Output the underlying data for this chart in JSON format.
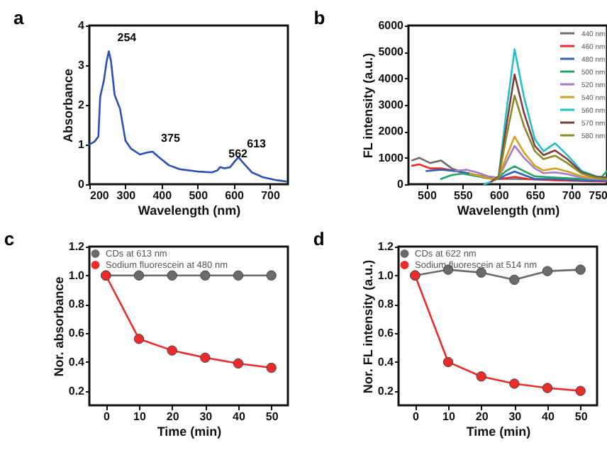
{
  "chart_data": [
    {
      "type": "line",
      "title": "a",
      "xlabel": "Wavelength (nm)",
      "ylabel": "Absorbance",
      "xlim": [
        200,
        750
      ],
      "xticks": [
        200,
        300,
        400,
        500,
        600,
        700
      ],
      "ylim": [
        0,
        4
      ],
      "yticks": [
        0,
        1,
        2,
        3,
        4
      ],
      "grid": false,
      "legend": false,
      "line_style": "solid",
      "series": [
        {
          "color": "#2b4fb5",
          "x": [
            200,
            215,
            225,
            230,
            240,
            248,
            254,
            260,
            270,
            285,
            300,
            315,
            340,
            360,
            375,
            390,
            420,
            450,
            500,
            540,
            555,
            562,
            575,
            590,
            605,
            613,
            625,
            650,
            680,
            720,
            745
          ],
          "values": [
            1.0,
            1.08,
            1.2,
            2.2,
            2.6,
            3.1,
            3.35,
            3.1,
            2.25,
            1.9,
            1.1,
            0.9,
            0.75,
            0.8,
            0.82,
            0.7,
            0.48,
            0.38,
            0.32,
            0.3,
            0.35,
            0.43,
            0.4,
            0.43,
            0.6,
            0.68,
            0.55,
            0.3,
            0.18,
            0.1,
            0.07
          ]
        }
      ],
      "annotations": [
        {
          "text": "254",
          "x": 254,
          "y": 3.35
        },
        {
          "text": "375",
          "x": 375,
          "y": 0.82
        },
        {
          "text": "562",
          "x": 562,
          "y": 0.43
        },
        {
          "text": "613",
          "x": 613,
          "y": 0.68
        }
      ]
    },
    {
      "type": "line",
      "title": "b",
      "xlabel": "Wavelength (nm)",
      "ylabel": "FL intensity (a.u.)",
      "xlim": [
        475,
        750
      ],
      "xticks": [
        500,
        550,
        600,
        650,
        700,
        750
      ],
      "ylim": [
        0,
        6000
      ],
      "yticks": [
        0,
        1000,
        2000,
        3000,
        4000,
        5000,
        6000
      ],
      "grid": false,
      "legend": "top right",
      "line_style": "solid",
      "series": [
        {
          "name": "440 nm",
          "color": "#6d6d6d",
          "x": [
            480,
            490,
            505,
            520,
            535,
            550,
            570,
            590,
            600,
            622,
            650,
            700,
            750
          ],
          "values": [
            900,
            1000,
            800,
            900,
            600,
            450,
            350,
            250,
            200,
            200,
            180,
            150,
            120
          ]
        },
        {
          "name": "460 nm",
          "color": "#ee2b2b",
          "x": [
            480,
            490,
            505,
            520,
            540,
            560,
            580,
            600,
            610,
            622,
            640,
            678,
            715,
            750
          ],
          "values": [
            700,
            750,
            600,
            600,
            500,
            400,
            250,
            200,
            230,
            280,
            200,
            150,
            120,
            100
          ]
        },
        {
          "name": "480 nm",
          "color": "#2e62c0",
          "x": [
            500,
            520,
            540,
            560,
            580,
            600,
            610,
            622,
            635,
            650,
            678,
            715,
            750
          ],
          "values": [
            500,
            550,
            500,
            400,
            250,
            200,
            350,
            480,
            350,
            200,
            200,
            150,
            130
          ]
        },
        {
          "name": "500 nm",
          "color": "#22a364",
          "x": [
            520,
            535,
            550,
            570,
            590,
            600,
            610,
            622,
            635,
            650,
            678,
            715,
            740,
            750
          ],
          "values": [
            200,
            350,
            400,
            300,
            200,
            250,
            500,
            680,
            500,
            300,
            250,
            200,
            200,
            500
          ]
        },
        {
          "name": "520 nm",
          "color": "#a57cc8",
          "x": [
            540,
            555,
            570,
            585,
            600,
            610,
            622,
            635,
            650,
            662,
            678,
            695,
            715,
            735,
            750
          ],
          "values": [
            500,
            550,
            450,
            300,
            250,
            800,
            1450,
            1000,
            600,
            420,
            450,
            380,
            250,
            200,
            180
          ]
        },
        {
          "name": "540 nm",
          "color": "#d4a020",
          "x": [
            560,
            575,
            590,
            600,
            610,
            622,
            635,
            650,
            662,
            678,
            695,
            715,
            735,
            750
          ],
          "values": [
            400,
            300,
            200,
            250,
            1000,
            1800,
            1200,
            700,
            520,
            600,
            480,
            300,
            220,
            200
          ]
        },
        {
          "name": "560 nm",
          "color": "#22c0c8",
          "x": [
            580,
            590,
            600,
            610,
            622,
            635,
            650,
            662,
            678,
            695,
            715,
            735,
            750
          ],
          "values": [
            0,
            100,
            300,
            2600,
            5100,
            3300,
            1700,
            1250,
            1550,
            1100,
            500,
            300,
            250
          ]
        },
        {
          "name": "570 nm",
          "color": "#7b3f3a",
          "x": [
            590,
            600,
            610,
            622,
            635,
            650,
            662,
            678,
            695,
            715,
            735,
            750
          ],
          "values": [
            100,
            300,
            2100,
            4150,
            2700,
            1450,
            1100,
            1280,
            950,
            450,
            280,
            250
          ]
        },
        {
          "name": "580 nm",
          "color": "#8a8a2a",
          "x": [
            595,
            600,
            610,
            622,
            635,
            650,
            662,
            678,
            695,
            715,
            735,
            750
          ],
          "values": [
            150,
            250,
            1700,
            3350,
            2200,
            1250,
            950,
            1080,
            800,
            400,
            250,
            200
          ]
        }
      ]
    },
    {
      "type": "line",
      "title": "c",
      "xlabel": "Time (min)",
      "ylabel": "Nor. absorbance",
      "xlim": [
        -5,
        55
      ],
      "xticks": [
        0,
        10,
        20,
        30,
        40,
        50
      ],
      "ylim": [
        0.1,
        1.2
      ],
      "yticks": [
        0.2,
        0.4,
        0.6,
        0.8,
        {
          "value": 1,
          "label": "1.0"
        },
        1.2
      ],
      "grid": false,
      "legend": "top left",
      "marker": "circle",
      "line_style": "solid",
      "x": [
        0,
        10,
        20,
        30,
        40,
        50
      ],
      "series": [
        {
          "name": "CDs at 613 nm",
          "color": "#6b6b6b",
          "values": [
            1.0,
            1.0,
            1.0,
            1.0,
            1.0,
            1.0
          ]
        },
        {
          "name": "Sodium fluorescein at 480 nm",
          "color": "#ee2b2b",
          "values": [
            1.0,
            0.56,
            0.48,
            0.43,
            0.39,
            0.36
          ]
        }
      ]
    },
    {
      "type": "line",
      "title": "d",
      "xlabel": "Time (min)",
      "ylabel": "Nor. FL intensity (a.u.)",
      "xlim": [
        -5,
        55
      ],
      "xticks": [
        0,
        10,
        20,
        30,
        40,
        50
      ],
      "ylim": [
        0.1,
        1.2
      ],
      "yticks": [
        0.2,
        0.4,
        0.6,
        0.8,
        {
          "value": 1,
          "label": "1.0"
        },
        1.2
      ],
      "grid": false,
      "legend": "top left",
      "marker": "circle",
      "line_style": "solid",
      "x": [
        0,
        10,
        20,
        30,
        40,
        50
      ],
      "series": [
        {
          "name": "CDs at 622 nm",
          "color": "#6b6b6b",
          "values": [
            1.0,
            1.04,
            1.02,
            0.97,
            1.03,
            1.04
          ]
        },
        {
          "name": "Sodium fluorescein at 514 nm",
          "color": "#ee2b2b",
          "values": [
            1.0,
            0.4,
            0.3,
            0.25,
            0.22,
            0.2
          ]
        }
      ]
    }
  ]
}
